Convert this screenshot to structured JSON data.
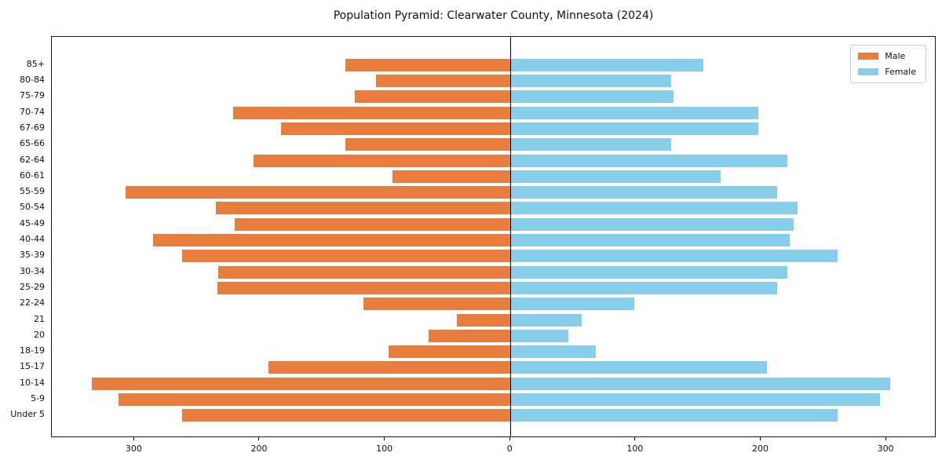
{
  "chart_data": {
    "type": "bar",
    "subtype": "population_pyramid",
    "title": "Population Pyramid: Clearwater County, Minnesota (2024)",
    "categories": [
      "85+",
      "80-84",
      "75-79",
      "70-74",
      "67-69",
      "65-66",
      "62-64",
      "60-61",
      "55-59",
      "50-54",
      "45-49",
      "40-44",
      "35-39",
      "30-34",
      "25-29",
      "22-24",
      "21",
      "20",
      "18-19",
      "15-17",
      "10-14",
      "5-9",
      "Under 5"
    ],
    "series": [
      {
        "name": "Male",
        "side": "left",
        "color": "#e87d3e",
        "values": [
          132,
          107,
          124,
          221,
          183,
          132,
          205,
          94,
          307,
          235,
          220,
          285,
          262,
          233,
          234,
          117,
          43,
          65,
          97,
          193,
          334,
          313,
          262
        ]
      },
      {
        "name": "Female",
        "side": "right",
        "color": "#87ceeb",
        "values": [
          154,
          128,
          130,
          198,
          198,
          128,
          221,
          168,
          213,
          229,
          226,
          223,
          261,
          221,
          213,
          99,
          57,
          46,
          68,
          205,
          303,
          295,
          261
        ]
      }
    ],
    "x_ticks": [
      {
        "value": -300,
        "label": "300"
      },
      {
        "value": -200,
        "label": "200"
      },
      {
        "value": -100,
        "label": "100"
      },
      {
        "value": 0,
        "label": "0"
      },
      {
        "value": 100,
        "label": "100"
      },
      {
        "value": 200,
        "label": "200"
      },
      {
        "value": 300,
        "label": "300"
      }
    ],
    "xlim": [
      -366,
      340
    ],
    "xlabel": "",
    "ylabel": "",
    "grid": false,
    "legend_position": "upper-right",
    "axis_color": "#000000",
    "background": "#ffffff",
    "zero_line": true
  }
}
